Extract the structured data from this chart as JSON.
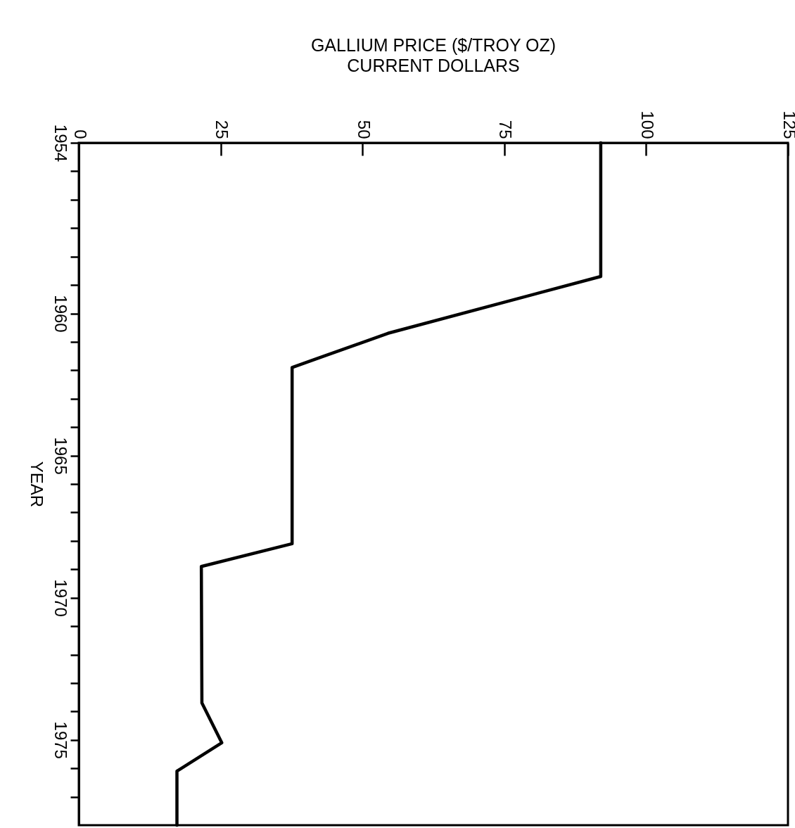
{
  "chart_data": {
    "type": "line",
    "title": "GALLIUM PRICE ($/TROY OZ)",
    "subtitle": "CURRENT DOLLARS",
    "ylabel": "YEAR",
    "x": [
      92,
      92,
      54.5,
      37.6,
      37.6,
      21.6,
      21.7,
      25.2,
      17.3,
      17.3
    ],
    "series": [
      {
        "color": "#000000",
        "values": [
          1954,
          1958.7,
          1960.7,
          1961.9,
          1968.1,
          1968.9,
          1973.7,
          1975.1,
          1976.1,
          1978
        ]
      }
    ],
    "xlim": [
      0,
      125
    ],
    "xticks": [
      0,
      25,
      50,
      75,
      100,
      125
    ],
    "ylim": [
      1978,
      1954
    ],
    "yticks": [
      1954,
      {
        "value": 1955,
        "label": null
      },
      {
        "value": 1956,
        "label": null
      },
      {
        "value": 1957,
        "label": null
      },
      {
        "value": 1958,
        "label": null
      },
      {
        "value": 1959,
        "label": null
      },
      1960,
      {
        "value": 1961,
        "label": null
      },
      {
        "value": 1962,
        "label": null
      },
      {
        "value": 1963,
        "label": null
      },
      {
        "value": 1964,
        "label": null
      },
      1965,
      {
        "value": 1966,
        "label": null
      },
      {
        "value": 1967,
        "label": null
      },
      {
        "value": 1968,
        "label": null
      },
      {
        "value": 1969,
        "label": null
      },
      1970,
      {
        "value": 1971,
        "label": null
      },
      {
        "value": 1972,
        "label": null
      },
      {
        "value": 1973,
        "label": null
      },
      {
        "value": 1974,
        "label": null
      },
      1975,
      {
        "value": 1976,
        "label": null
      },
      {
        "value": 1977,
        "label": null
      }
    ],
    "grid": false,
    "marker": "none",
    "line_style": "solid"
  }
}
